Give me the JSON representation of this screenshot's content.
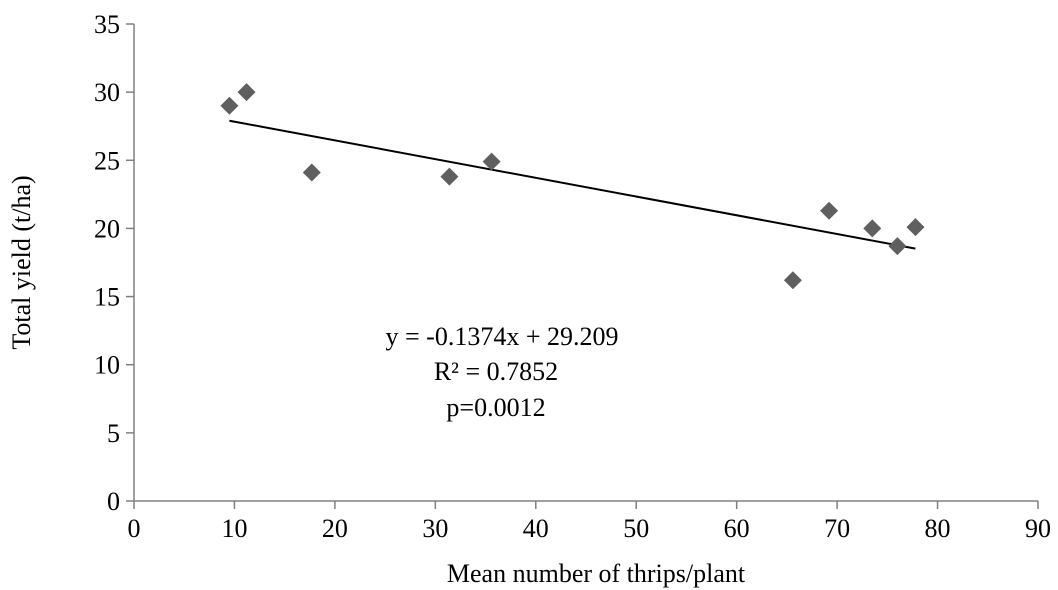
{
  "chart_data": {
    "type": "scatter",
    "title": "",
    "xlabel": "Mean number of thrips/plant",
    "ylabel": "Total yield (t/ha)",
    "xlim": [
      0,
      90
    ],
    "ylim": [
      0,
      35
    ],
    "xticks": [
      "0",
      "10",
      "20",
      "30",
      "40",
      "50",
      "60",
      "70",
      "80",
      "90"
    ],
    "yticks": [
      "0",
      "5",
      "10",
      "15",
      "20",
      "25",
      "30",
      "35"
    ],
    "grid": false,
    "legend": "none",
    "marker_color": "#5f5f5f",
    "series": [
      {
        "x": [
          9.5,
          11.2,
          17.7,
          31.4,
          35.6,
          65.6,
          69.2,
          73.5,
          76.0,
          77.8
        ],
        "y": [
          29.0,
          30.0,
          24.1,
          23.8,
          24.9,
          16.2,
          21.3,
          20.0,
          18.7,
          20.1
        ]
      }
    ],
    "trendline": {
      "slope": -0.1374,
      "intercept": 29.209,
      "x_range": [
        9.5,
        77.8
      ],
      "color": "#000000"
    },
    "annotations": [
      "y = -0.1374x + 29.209",
      "R² = 0.7852",
      "p=0.0012"
    ]
  }
}
